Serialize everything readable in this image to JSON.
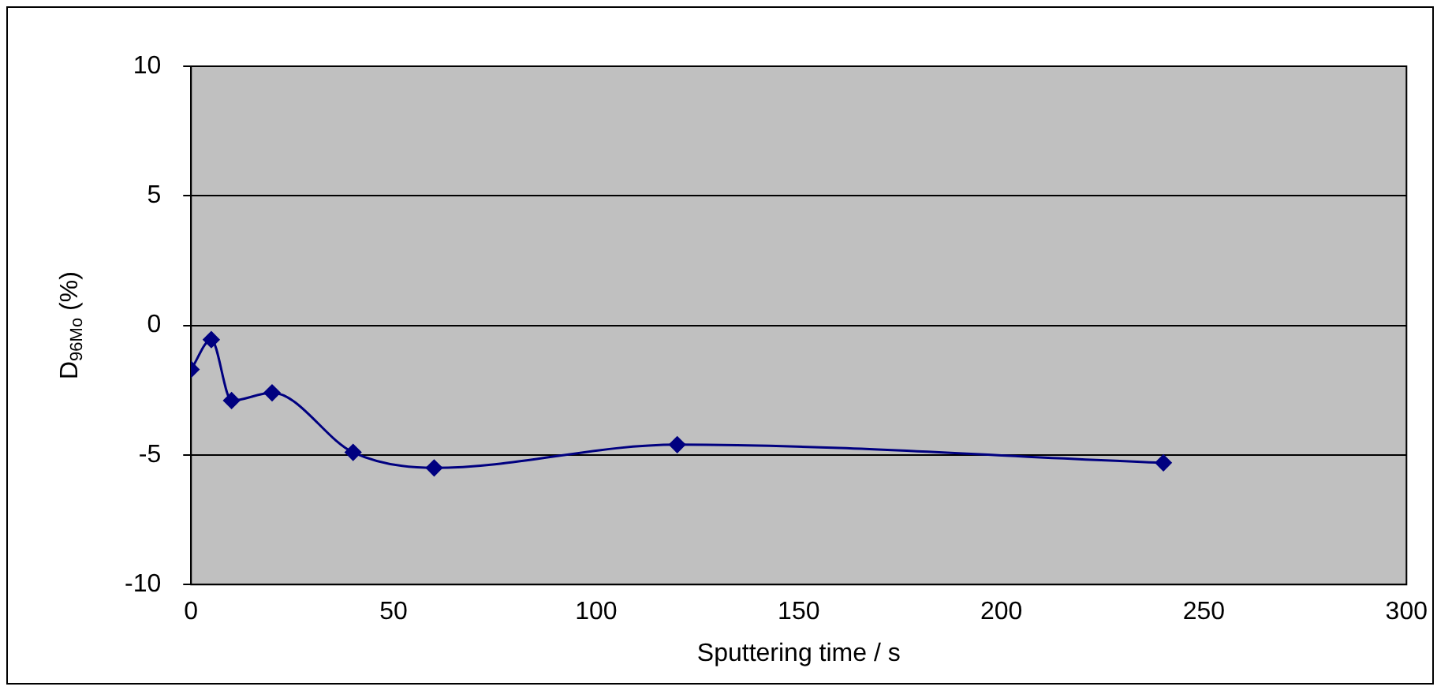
{
  "chart_data": {
    "type": "line",
    "xlabel": "Sputtering time / s",
    "ylabel": "D$_{96Mo}$ (%)",
    "x": [
      0,
      5,
      10,
      20,
      40,
      60,
      120,
      240
    ],
    "series": [
      {
        "color": "#000080",
        "values": [
          -1.7,
          -0.55,
          -2.9,
          -2.6,
          -4.9,
          -5.5,
          -4.6,
          -5.3
        ]
      }
    ],
    "xlim": [
      0,
      300
    ],
    "xticks": [
      0,
      50,
      100,
      150,
      200,
      250,
      300
    ],
    "ylim": [
      -10,
      10
    ],
    "yticks": [
      -10,
      -5,
      0,
      5,
      10
    ],
    "grid": "y",
    "legend": false,
    "marker": "diamond",
    "line_style": "solid"
  }
}
